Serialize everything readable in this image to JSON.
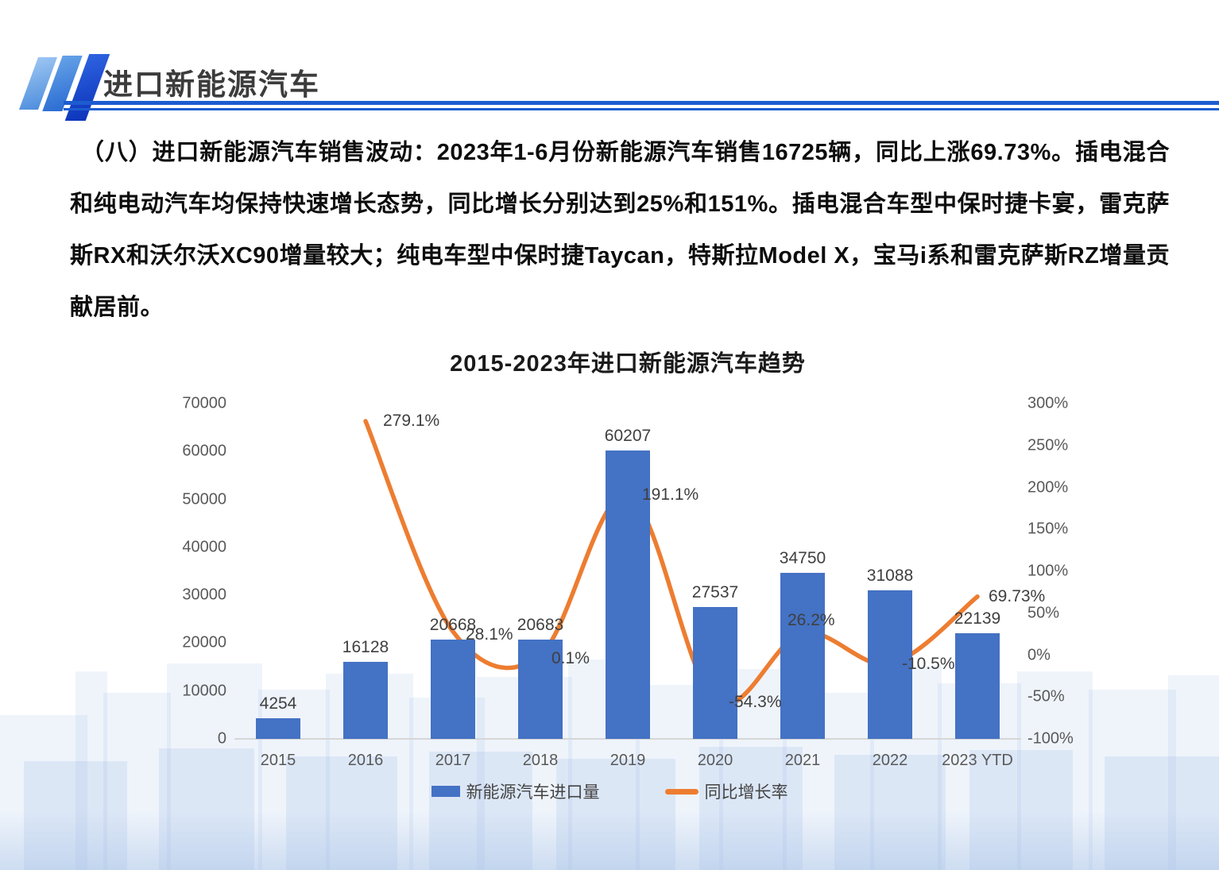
{
  "header": {
    "title": "进口新能源汽车"
  },
  "paragraph": {
    "text": "（八）进口新能源汽车销售波动：2023年1-6月份新能源汽车销售16725辆，同比上涨69.73%。插电混合和纯电动汽车均保持快速增长态势，同比增长分别达到25%和151%。插电混合车型中保时捷卡宴，雷克萨斯RX和沃尔沃XC90增量较大；纯电车型中保时捷Taycan，特斯拉Model X，宝马i系和雷克萨斯RZ增量贡献居前。"
  },
  "chart_data": {
    "type": "bar+line combo",
    "title": "2015-2023年进口新能源汽车趋势",
    "categories": [
      "2015",
      "2016",
      "2017",
      "2018",
      "2019",
      "2020",
      "2021",
      "2022",
      "2023 YTD"
    ],
    "series": [
      {
        "name": "新能源汽车进口量",
        "type": "bar",
        "axis": "left",
        "color": "#4472C4",
        "values": [
          4254,
          16128,
          20668,
          20683,
          60207,
          27537,
          34750,
          31088,
          22139
        ],
        "value_labels": [
          "4254",
          "16128",
          "20668",
          "20683",
          "60207",
          "27537",
          "34750",
          "31088",
          "22139"
        ]
      },
      {
        "name": "同比增长率",
        "type": "line",
        "axis": "right",
        "color": "#ED7D31",
        "values": [
          null,
          279.1,
          28.1,
          0.1,
          191.1,
          -54.3,
          26.2,
          -10.5,
          69.73
        ],
        "value_labels": [
          null,
          "279.1%",
          "28.1%",
          "0.1%",
          "191.1%",
          "-54.3%",
          "26.2%",
          "-10.5%",
          "69.73%"
        ]
      }
    ],
    "left_axis": {
      "min": 0,
      "max": 70000,
      "step": 10000,
      "ticks": [
        "70000",
        "60000",
        "50000",
        "40000",
        "30000",
        "20000",
        "10000",
        "0"
      ]
    },
    "right_axis": {
      "min": -100,
      "max": 300,
      "step": 50,
      "ticks": [
        "300%",
        "250%",
        "200%",
        "150%",
        "100%",
        "50%",
        "0%",
        "-50%",
        "-100%"
      ]
    },
    "legend_position": "bottom",
    "grid": false
  },
  "colors": {
    "bar": "#4472C4",
    "line": "#ED7D31",
    "header_rule": "#1d5cd0",
    "axis_text": "#595959",
    "skyline": "#dbe6f5"
  }
}
